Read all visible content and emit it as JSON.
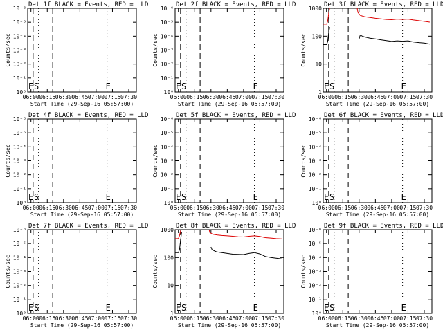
{
  "common": {
    "xlabel": "Start Time (29-Sep-16 05:57:00)",
    "ylabel": "Counts/sec",
    "x_ticks": [
      "06:00",
      "06:15",
      "06:30",
      "06:45",
      "07:00",
      "07:15",
      "07:30"
    ],
    "marker_E": "E",
    "marker_S": "S",
    "colors": {
      "events": "#000000",
      "lld": "#dd0000"
    }
  },
  "chart_data": [
    {
      "type": "line",
      "title": "Det 1f BLACK = Events, RED = LLD",
      "ylabel": "Counts/sec",
      "xlabel": "Start Time (29-Sep-16 05:57:00)",
      "x_range": [
        "05:57",
        "07:37"
      ],
      "y_scale": "log",
      "y_ticks": [
        "10⁰",
        "10⁻¹",
        "10⁻²",
        "10⁻³",
        "10⁻⁴",
        "10⁻⁵",
        "10⁻⁶"
      ],
      "series": []
    },
    {
      "type": "line",
      "title": "Det 2f BLACK = Events, RED = LLD",
      "ylabel": "Counts/sec",
      "xlabel": "Start Time (29-Sep-16 05:57:00)",
      "x_range": [
        "05:57",
        "07:37"
      ],
      "y_scale": "log",
      "y_ticks": [
        "10⁰",
        "10⁻¹",
        "10⁻²",
        "10⁻³",
        "10⁻⁴",
        "10⁻⁵",
        "10⁻⁶"
      ],
      "series": []
    },
    {
      "type": "line",
      "title": "Det 3f BLACK = Events, RED = LLD",
      "ylabel": "Counts/sec",
      "xlabel": "Start Time (29-Sep-16 05:57:00)",
      "x_range": [
        "05:57",
        "07:37"
      ],
      "y_scale": "log",
      "y_ticks": [
        "1",
        "10",
        "100",
        "1000"
      ],
      "series": [
        {
          "color": "events",
          "segments": [
            [
              [
                "05:57",
                50
              ],
              [
                "06:00",
                50
              ],
              [
                "06:01",
                62
              ],
              [
                "06:02",
                140
              ],
              [
                "06:03",
                210
              ]
            ],
            [
              [
                "06:30",
                80
              ],
              [
                "06:31",
                110
              ],
              [
                "06:33",
                100
              ],
              [
                "06:36",
                92
              ],
              [
                "06:40",
                85
              ],
              [
                "06:45",
                80
              ],
              [
                "06:50",
                74
              ],
              [
                "06:55",
                69
              ],
              [
                "07:00",
                65
              ],
              [
                "07:05",
                68
              ],
              [
                "07:10",
                66
              ],
              [
                "07:15",
                68
              ],
              [
                "07:20",
                62
              ],
              [
                "07:25",
                59
              ],
              [
                "07:30",
                57
              ],
              [
                "07:35",
                52
              ]
            ]
          ]
        },
        {
          "color": "lld",
          "segments": [
            [
              [
                "05:57",
                270
              ],
              [
                "06:00",
                270
              ],
              [
                "06:01",
                330
              ],
              [
                "06:02",
                650
              ],
              [
                "06:03",
                1100
              ]
            ],
            [
              [
                "06:28",
                1100
              ],
              [
                "06:29",
                700
              ],
              [
                "06:31",
                560
              ],
              [
                "06:35",
                500
              ],
              [
                "06:40",
                470
              ],
              [
                "06:45",
                440
              ],
              [
                "06:50",
                420
              ],
              [
                "06:55",
                400
              ],
              [
                "07:00",
                390
              ],
              [
                "07:05",
                410
              ],
              [
                "07:10",
                400
              ],
              [
                "07:15",
                410
              ],
              [
                "07:20",
                380
              ],
              [
                "07:25",
                360
              ],
              [
                "07:30",
                340
              ],
              [
                "07:35",
                320
              ]
            ]
          ]
        }
      ]
    },
    {
      "type": "line",
      "title": "Det 4f BLACK = Events, RED = LLD",
      "ylabel": "Counts/sec",
      "xlabel": "Start Time (29-Sep-16 05:57:00)",
      "x_range": [
        "05:57",
        "07:37"
      ],
      "y_scale": "log",
      "y_ticks": [
        "10⁰",
        "10⁻¹",
        "10⁻²",
        "10⁻³",
        "10⁻⁴",
        "10⁻⁵",
        "10⁻⁶"
      ],
      "series": []
    },
    {
      "type": "line",
      "title": "Det 5f BLACK = Events, RED = LLD",
      "ylabel": "Counts/sec",
      "xlabel": "Start Time (29-Sep-16 05:57:00)",
      "x_range": [
        "05:57",
        "07:37"
      ],
      "y_scale": "log",
      "y_ticks": [
        "10⁰",
        "10⁻¹",
        "10⁻²",
        "10⁻³",
        "10⁻⁴",
        "10⁻⁵",
        "10⁻⁶"
      ],
      "series": []
    },
    {
      "type": "line",
      "title": "Det 6f BLACK = Events, RED = LLD",
      "ylabel": "Counts/sec",
      "xlabel": "Start Time (29-Sep-16 05:57:00)",
      "x_range": [
        "05:57",
        "07:37"
      ],
      "y_scale": "log",
      "y_ticks": [
        "10⁰",
        "10⁻¹",
        "10⁻²",
        "10⁻³",
        "10⁻⁴",
        "10⁻⁵",
        "10⁻⁶"
      ],
      "series": []
    },
    {
      "type": "line",
      "title": "Det 7f BLACK = Events, RED = LLD",
      "ylabel": "Counts/sec",
      "xlabel": "Start Time (29-Sep-16 05:57:00)",
      "x_range": [
        "05:57",
        "07:37"
      ],
      "y_scale": "log",
      "y_ticks": [
        "10⁰",
        "10⁻¹",
        "10⁻²",
        "10⁻³",
        "10⁻⁴",
        "10⁻⁵",
        "10⁻⁶"
      ],
      "series": []
    },
    {
      "type": "line",
      "title": "Det 8f BLACK = Events, RED = LLD",
      "ylabel": "Counts/sec",
      "xlabel": "Start Time (29-Sep-16 05:57:00)",
      "x_range": [
        "05:57",
        "07:37"
      ],
      "y_scale": "log",
      "y_ticks": [
        "1",
        "10",
        "100",
        "1000"
      ],
      "series": [
        {
          "color": "events",
          "segments": [
            [
              [
                "05:57",
                150
              ],
              [
                "06:00",
                150
              ],
              [
                "06:01",
                190
              ],
              [
                "06:02",
                420
              ],
              [
                "06:03",
                800
              ]
            ],
            [
              [
                "06:30",
                240
              ],
              [
                "06:31",
                190
              ],
              [
                "06:35",
                160
              ],
              [
                "06:40",
                150
              ],
              [
                "06:45",
                140
              ],
              [
                "06:50",
                132
              ],
              [
                "06:55",
                130
              ],
              [
                "07:00",
                128
              ],
              [
                "07:05",
                140
              ],
              [
                "07:10",
                150
              ],
              [
                "07:15",
                135
              ],
              [
                "07:20",
                110
              ],
              [
                "07:25",
                100
              ],
              [
                "07:30",
                95
              ],
              [
                "07:35",
                90
              ]
            ]
          ]
        },
        {
          "color": "lld",
          "segments": [
            [
              [
                "05:57",
                480
              ],
              [
                "06:00",
                480
              ],
              [
                "06:01",
                600
              ],
              [
                "06:02",
                900
              ],
              [
                "06:03",
                1100
              ]
            ],
            [
              [
                "06:28",
                1100
              ],
              [
                "06:29",
                780
              ],
              [
                "06:32",
                680
              ],
              [
                "06:36",
                640
              ],
              [
                "06:40",
                620
              ],
              [
                "06:45",
                600
              ],
              [
                "06:50",
                580
              ],
              [
                "06:55",
                560
              ],
              [
                "07:00",
                550
              ],
              [
                "07:05",
                580
              ],
              [
                "07:10",
                600
              ],
              [
                "07:15",
                570
              ],
              [
                "07:20",
                520
              ],
              [
                "07:25",
                500
              ],
              [
                "07:30",
                480
              ],
              [
                "07:35",
                470
              ]
            ]
          ]
        }
      ]
    },
    {
      "type": "line",
      "title": "Det 9f BLACK = Events, RED = LLD",
      "ylabel": "Counts/sec",
      "xlabel": "Start Time (29-Sep-16 05:57:00)",
      "x_range": [
        "05:57",
        "07:37"
      ],
      "y_scale": "log",
      "y_ticks": [
        "10⁰",
        "10⁻¹",
        "10⁻²",
        "10⁻³",
        "10⁻⁴",
        "10⁻⁵",
        "10⁻⁶"
      ],
      "series": []
    }
  ]
}
